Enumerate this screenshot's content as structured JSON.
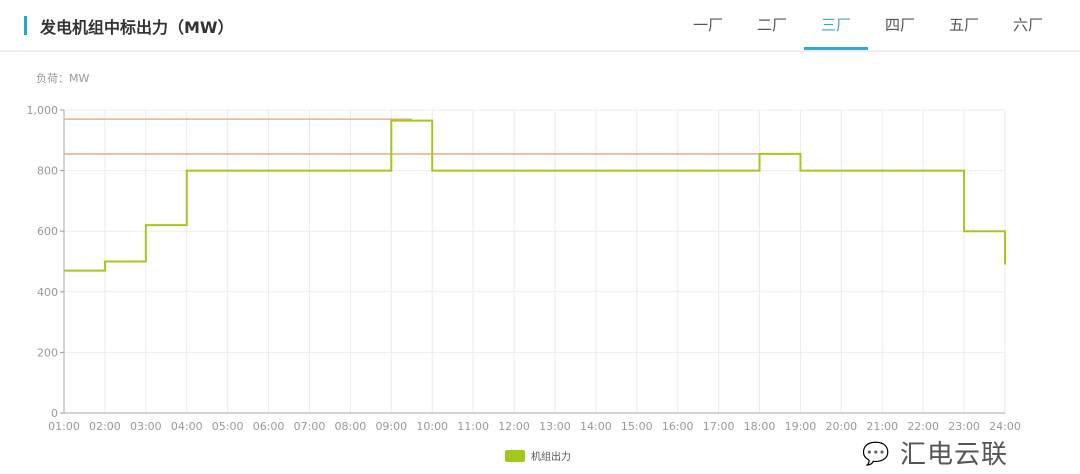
{
  "header": {
    "title": "发电机组中标出力（MW）"
  },
  "tabs": [
    {
      "label": "一厂"
    },
    {
      "label": "二厂"
    },
    {
      "label": "三厂",
      "active": true
    },
    {
      "label": "四厂"
    },
    {
      "label": "五厂"
    },
    {
      "label": "六厂"
    }
  ],
  "watermark": "汇电云联",
  "colors": {
    "accent": "#3aa8cc",
    "series": "#a5c81e",
    "reference": "#e8a27a"
  },
  "chart_data": {
    "type": "line",
    "step": true,
    "ylabel": "负荷：MW",
    "ylim": [
      0,
      1000
    ],
    "yticks": [
      "0",
      "200",
      "400",
      "600",
      "800",
      "1,000"
    ],
    "ytick_values": [
      0,
      200,
      400,
      600,
      800,
      1000
    ],
    "x": [
      "01:00",
      "02:00",
      "03:00",
      "04:00",
      "05:00",
      "06:00",
      "07:00",
      "08:00",
      "09:00",
      "10:00",
      "11:00",
      "12:00",
      "13:00",
      "14:00",
      "15:00",
      "16:00",
      "17:00",
      "18:00",
      "19:00",
      "20:00",
      "21:00",
      "22:00",
      "23:00",
      "24:00"
    ],
    "series": [
      {
        "name": "机组出力",
        "values": [
          470,
          500,
          620,
          800,
          800,
          800,
          800,
          800,
          965,
          800,
          800,
          800,
          800,
          800,
          800,
          800,
          800,
          855,
          800,
          800,
          800,
          800,
          600,
          490
        ]
      }
    ],
    "reference_lines": [
      {
        "value": 970,
        "from": "01:00",
        "to": "09:30"
      },
      {
        "value": 855,
        "from": "01:00",
        "to": "18:00"
      }
    ],
    "grid": true,
    "legend": "bottom-center"
  }
}
